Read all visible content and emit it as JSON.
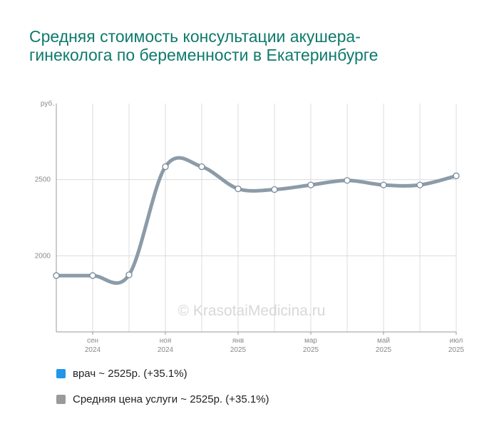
{
  "title": "Средняя стоимость консультации акушера-гинеколога по беременности в Екатеринбурге",
  "watermark": "© KrasotaiMedicina.ru",
  "colors": {
    "title": "#0f7a6c",
    "line": "#8c9ba8",
    "legend_doctor": "#2196e8",
    "legend_avg": "#9a9a9a"
  },
  "legend": [
    {
      "name": "врач ~ 2525р. (+35.1%)",
      "color": "#2196e8"
    },
    {
      "name": "Средняя цена услуги ~ 2525р. (+35.1%)",
      "color": "#9a9a9a"
    }
  ],
  "chart_data": {
    "type": "line",
    "ylabel": "руб.",
    "ylim": [
      1500,
      3000
    ],
    "yticks": [
      2000,
      2500
    ],
    "x": [
      "2024-08",
      "2024-09",
      "2024-10",
      "2024-11",
      "2024-12",
      "2025-01",
      "2025-02",
      "2025-03",
      "2025-04",
      "2025-05",
      "2025-06",
      "2025-07"
    ],
    "xtick_labels": [
      {
        "month": "сен",
        "year": "2024"
      },
      {
        "month": "ноя",
        "year": "2024"
      },
      {
        "month": "янв",
        "year": "2025"
      },
      {
        "month": "мар",
        "year": "2025"
      },
      {
        "month": "май",
        "year": "2025"
      },
      {
        "month": "июл",
        "year": "2025"
      }
    ],
    "series": [
      {
        "name": "Средняя цена услуги",
        "values": [
          1870,
          1870,
          1875,
          2585,
          2585,
          2440,
          2435,
          2465,
          2495,
          2465,
          2465,
          2525
        ]
      }
    ],
    "grid": true
  }
}
